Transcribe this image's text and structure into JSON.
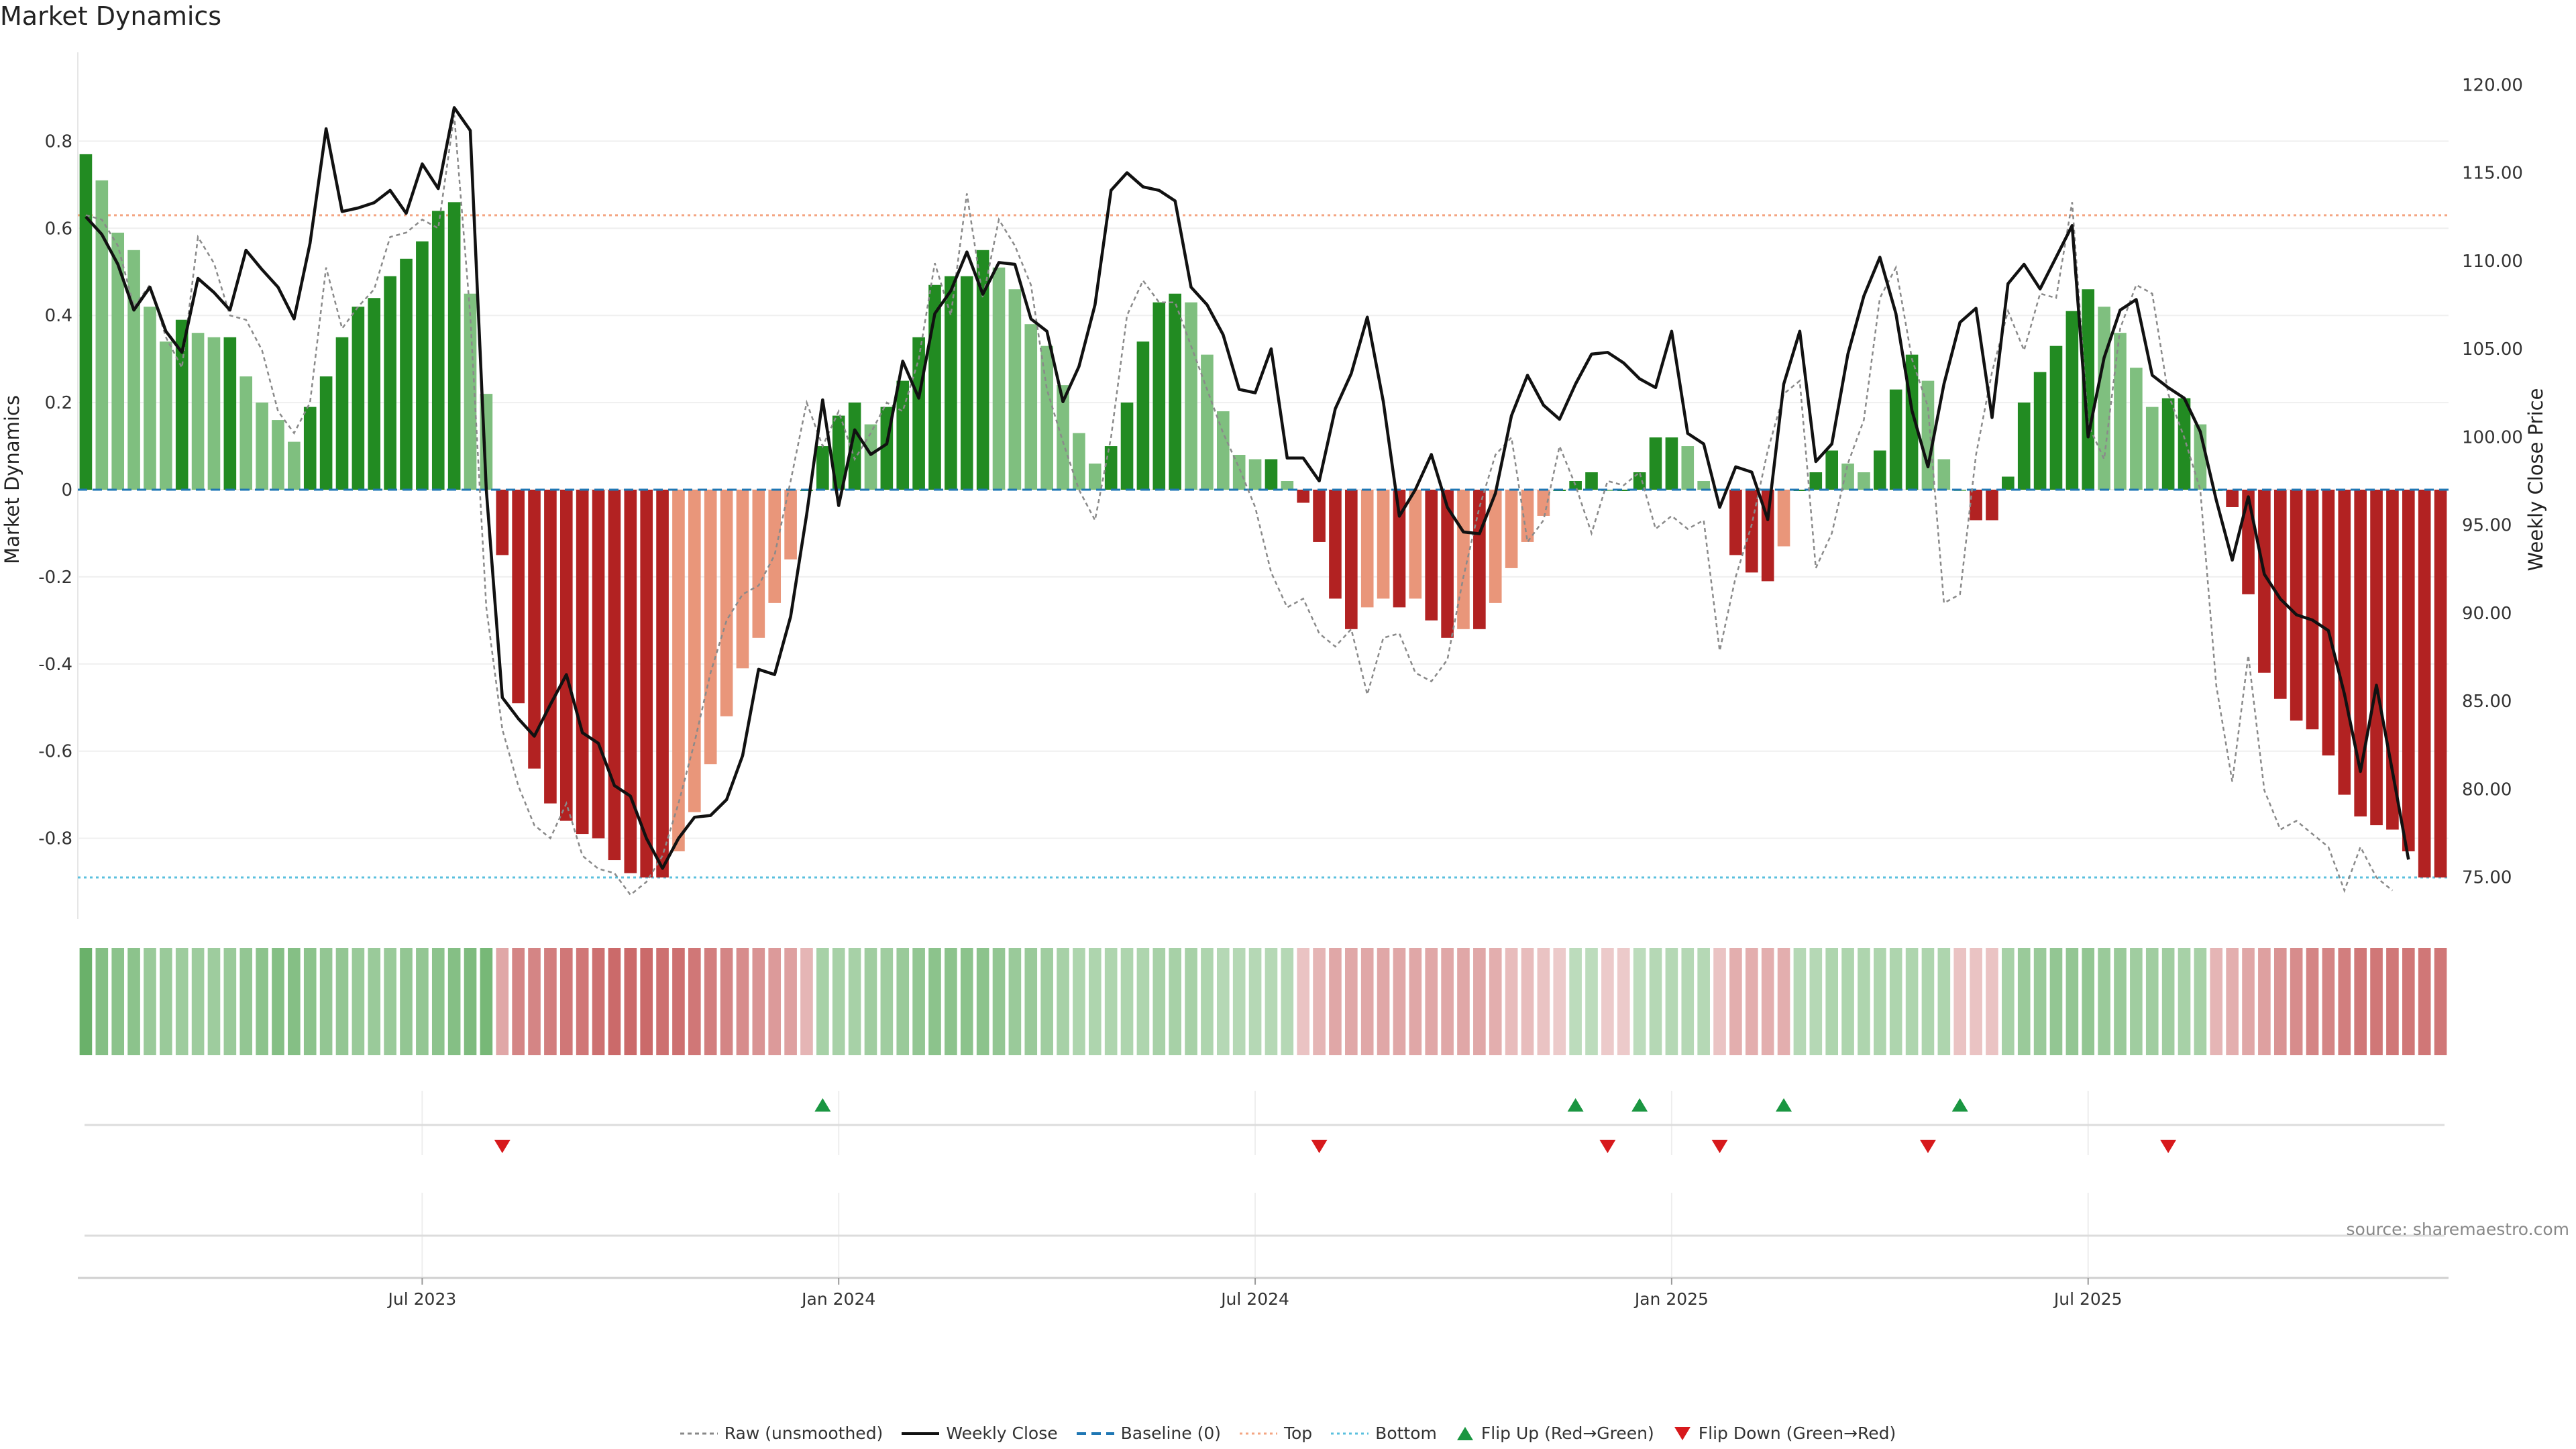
{
  "title": "Market Dynamics",
  "source": "source: sharemaestro.com",
  "colors": {
    "strong_green": "#228B22",
    "light_green": "#7FBF7F",
    "strong_red": "#B22222",
    "light_red": "#E9967A",
    "baseline": "#1f77b4",
    "top": "#f4a582",
    "bottom": "#5bc0de",
    "flip_up": "#1a9641",
    "flip_down": "#d7191c"
  },
  "chart_data": {
    "type": "bar",
    "title": "Market Dynamics",
    "xlabel": "",
    "ylabel": "Market Dynamics",
    "y2label": "Weekly Close Price",
    "ylim": [
      -0.97,
      0.97
    ],
    "y2lim": [
      73.0,
      121.0
    ],
    "yticks": [
      "0.8",
      "0.6",
      "0.4",
      "0.2",
      "0",
      "-0.2",
      "-0.4",
      "-0.6",
      "-0.8"
    ],
    "y2ticks": [
      "120.00",
      "115.00",
      "110.00",
      "105.00",
      "100.00",
      "95.00",
      "90.00",
      "85.00",
      "80.00",
      "75.00"
    ],
    "xticks": [
      "Jul 2023",
      "Jan 2024",
      "Jul 2024",
      "Jan 2025",
      "Jul 2025"
    ],
    "xtick_index": [
      21,
      47,
      73,
      99,
      125
    ],
    "top_level": 0.63,
    "bottom_level": -0.89,
    "bar_values": [
      0.77,
      0.71,
      0.59,
      0.55,
      0.42,
      0.34,
      0.39,
      0.36,
      0.35,
      0.35,
      0.26,
      0.2,
      0.16,
      0.11,
      0.19,
      0.26,
      0.35,
      0.42,
      0.44,
      0.49,
      0.53,
      0.57,
      0.64,
      0.66,
      0.45,
      0.22,
      -0.15,
      -0.49,
      -0.64,
      -0.72,
      -0.76,
      -0.79,
      -0.8,
      -0.85,
      -0.88,
      -0.89,
      -0.89,
      -0.83,
      -0.74,
      -0.63,
      -0.52,
      -0.41,
      -0.34,
      -0.26,
      -0.16,
      0,
      0.1,
      0.17,
      0.2,
      0.15,
      0.19,
      0.25,
      0.35,
      0.47,
      0.49,
      0.49,
      0.55,
      0.51,
      0.46,
      0.38,
      0.33,
      0.24,
      0.13,
      0.06,
      0.1,
      0.2,
      0.34,
      0.43,
      0.45,
      0.43,
      0.31,
      0.18,
      0.08,
      0.07,
      0.07,
      0.02,
      -0.03,
      -0.12,
      -0.25,
      -0.32,
      -0.27,
      -0.25,
      -0.27,
      -0.25,
      -0.3,
      -0.34,
      -0.32,
      -0.32,
      -0.26,
      -0.18,
      -0.12,
      -0.06,
      0,
      0.02,
      0.04,
      0,
      0,
      0.04,
      0.12,
      0.12,
      0.1,
      0.02,
      0,
      -0.15,
      -0.19,
      -0.21,
      -0.13,
      0,
      0.04,
      0.09,
      0.06,
      0.04,
      0.09,
      0.23,
      0.31,
      0.25,
      0.07,
      0,
      -0.07,
      -0.07,
      0.03,
      0.2,
      0.27,
      0.33,
      0.41,
      0.46,
      0.42,
      0.36,
      0.28,
      0.19,
      0.21,
      0.21,
      0.15,
      0,
      -0.04,
      -0.24,
      -0.42,
      -0.48,
      -0.53,
      -0.55,
      -0.61,
      -0.7,
      -0.75,
      -0.77,
      -0.78,
      -0.83,
      -0.89,
      -0.89
    ],
    "weekly_close": [
      112.5,
      111.5,
      109.8,
      107.2,
      108.5,
      106.0,
      104.8,
      109.0,
      108.2,
      107.2,
      110.6,
      109.5,
      108.5,
      106.7,
      111.0,
      117.5,
      112.8,
      113.0,
      113.3,
      114.0,
      112.7,
      115.5,
      114.1,
      118.7,
      117.4,
      97.0,
      85.2,
      84.0,
      83.0,
      84.8,
      86.5,
      83.2,
      82.6,
      80.2,
      79.6,
      77.2,
      75.5,
      77.2,
      78.4,
      78.5,
      79.4,
      81.9,
      86.8,
      86.5,
      89.8,
      95.6,
      102.1,
      96.1,
      100.4,
      99.0,
      99.6,
      104.3,
      102.2,
      107.0,
      108.3,
      110.5,
      108.1,
      109.9,
      109.8,
      106.7,
      106.0,
      102.0,
      104.0,
      107.5,
      114.0,
      115.0,
      114.2,
      114.0,
      113.4,
      108.5,
      107.5,
      105.8,
      102.7,
      102.5,
      105.0,
      98.8,
      98.8,
      97.5,
      101.6,
      103.6,
      106.8,
      102.0,
      95.5,
      97.0,
      99.0,
      96.0,
      94.6,
      94.5,
      96.8,
      101.2,
      103.5,
      101.8,
      101.0,
      103.0,
      104.7,
      104.8,
      104.2,
      103.3,
      102.8,
      106.0,
      100.2,
      99.6,
      96.0,
      98.3,
      98.0,
      95.3,
      103.0,
      106.0,
      98.6,
      99.6,
      104.7,
      108.0,
      110.2,
      107.0,
      101.5,
      98.3,
      103.0,
      106.5,
      107.3,
      101.1,
      108.7,
      109.8,
      108.4,
      110.2,
      112.0,
      100.0,
      104.5,
      107.2,
      107.8,
      103.5,
      102.8,
      102.2,
      100.3,
      96.4,
      93.0,
      96.6,
      92.2,
      90.8,
      89.9,
      89.6,
      89.0,
      85.4,
      81.0,
      85.9,
      81.0,
      76.0
    ],
    "raw": [
      0.63,
      0.62,
      0.56,
      0.42,
      0.47,
      0.35,
      0.28,
      0.58,
      0.52,
      0.4,
      0.39,
      0.32,
      0.18,
      0.13,
      0.2,
      0.51,
      0.37,
      0.42,
      0.46,
      0.58,
      0.59,
      0.62,
      0.6,
      0.86,
      0.4,
      -0.27,
      -0.55,
      -0.68,
      -0.77,
      -0.8,
      -0.72,
      -0.84,
      -0.87,
      -0.88,
      -0.93,
      -0.9,
      -0.84,
      -0.72,
      -0.58,
      -0.42,
      -0.3,
      -0.24,
      -0.22,
      -0.15,
      0.02,
      0.2,
      0.1,
      0.18,
      0.07,
      0.13,
      0.2,
      0.18,
      0.3,
      0.52,
      0.4,
      0.68,
      0.44,
      0.62,
      0.56,
      0.47,
      0.23,
      0.11,
      0.0,
      -0.07,
      0.12,
      0.4,
      0.48,
      0.43,
      0.43,
      0.33,
      0.23,
      0.13,
      0.05,
      -0.04,
      -0.19,
      -0.27,
      -0.25,
      -0.33,
      -0.36,
      -0.32,
      -0.47,
      -0.34,
      -0.33,
      -0.42,
      -0.44,
      -0.39,
      -0.2,
      -0.04,
      0.08,
      0.12,
      -0.12,
      -0.07,
      0.1,
      0.01,
      -0.1,
      0.02,
      0.01,
      0.04,
      -0.09,
      -0.06,
      -0.09,
      -0.07,
      -0.37,
      -0.2,
      -0.08,
      0.09,
      0.22,
      0.25,
      -0.18,
      -0.1,
      0.06,
      0.16,
      0.44,
      0.51,
      0.3,
      0.19,
      -0.26,
      -0.24,
      0.08,
      0.27,
      0.41,
      0.32,
      0.45,
      0.44,
      0.66,
      0.15,
      0.07,
      0.37,
      0.47,
      0.45,
      0.22,
      0.12,
      0.0,
      -0.45,
      -0.67,
      -0.38,
      -0.69,
      -0.78,
      -0.76,
      -0.79,
      -0.82,
      -0.92,
      -0.82,
      -0.89,
      -0.92
    ],
    "heat_strip": [
      0.8,
      0.6,
      0.55,
      0.55,
      0.45,
      0.45,
      0.42,
      0.42,
      0.42,
      0.45,
      0.5,
      0.55,
      0.6,
      0.6,
      0.55,
      0.5,
      0.5,
      0.45,
      0.45,
      0.45,
      0.5,
      0.5,
      0.55,
      0.6,
      0.65,
      0.7,
      -0.35,
      -0.6,
      -0.6,
      -0.65,
      -0.7,
      -0.7,
      -0.75,
      -0.8,
      -0.8,
      -0.8,
      -0.75,
      -0.75,
      -0.7,
      -0.65,
      -0.6,
      -0.55,
      -0.5,
      -0.45,
      -0.4,
      -0.25,
      0.35,
      0.35,
      0.35,
      0.4,
      0.4,
      0.45,
      0.5,
      0.55,
      0.55,
      0.55,
      0.55,
      0.5,
      0.45,
      0.45,
      0.4,
      0.35,
      0.3,
      0.3,
      0.3,
      0.3,
      0.3,
      0.35,
      0.35,
      0.35,
      0.3,
      0.25,
      0.25,
      0.25,
      0.25,
      0.25,
      -0.15,
      -0.25,
      -0.35,
      -0.35,
      -0.35,
      -0.35,
      -0.35,
      -0.35,
      -0.35,
      -0.35,
      -0.35,
      -0.35,
      -0.3,
      -0.2,
      -0.2,
      -0.15,
      -0.1,
      0.2,
      0.2,
      -0.1,
      -0.1,
      0.2,
      0.25,
      0.25,
      0.25,
      0.25,
      -0.15,
      -0.3,
      -0.3,
      -0.3,
      -0.3,
      0.25,
      0.25,
      0.3,
      0.3,
      0.3,
      0.3,
      0.3,
      0.3,
      0.3,
      0.3,
      -0.15,
      -0.15,
      -0.15,
      0.35,
      0.45,
      0.45,
      0.5,
      0.5,
      0.5,
      0.45,
      0.45,
      0.4,
      0.4,
      0.4,
      0.35,
      0.35,
      -0.25,
      -0.3,
      -0.35,
      -0.4,
      -0.5,
      -0.55,
      -0.6,
      -0.6,
      -0.65,
      -0.7,
      -0.7,
      -0.7,
      -0.7,
      -0.7,
      -0.7
    ],
    "flip_up_index": [
      46,
      93,
      97,
      106,
      117
    ],
    "flip_down_index": [
      26,
      77,
      95,
      102,
      115,
      130
    ],
    "legend": [
      "Raw (unsmoothed)",
      "Weekly Close",
      "Baseline (0)",
      "Top",
      "Bottom",
      "Flip Up (Red→Green)",
      "Flip Down (Green→Red)"
    ]
  }
}
